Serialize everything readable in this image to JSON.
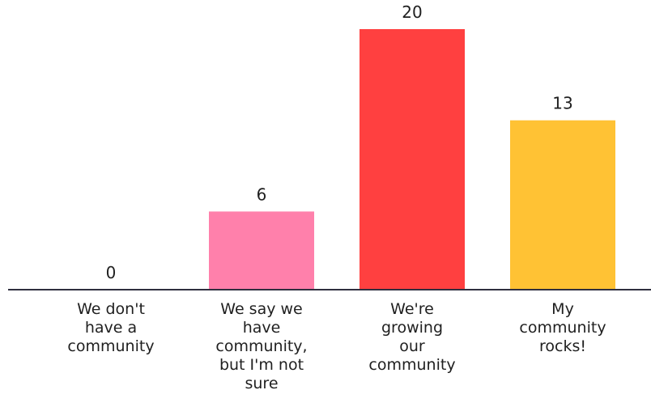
{
  "chart_data": {
    "type": "bar",
    "categories": [
      [
        "We don't",
        "have a",
        "community"
      ],
      [
        "We say we",
        "have",
        "community,",
        "but I'm not",
        "sure"
      ],
      [
        "We're",
        "growing",
        "our",
        "community"
      ],
      [
        "My",
        "community",
        "rocks!"
      ]
    ],
    "values": [
      0,
      6,
      20,
      13
    ],
    "colors": [
      "#ff80ab",
      "#ff80ab",
      "#ff4040",
      "#ffc234"
    ],
    "axis_color": "#2f2f3f",
    "ylim": [
      0,
      20
    ]
  }
}
